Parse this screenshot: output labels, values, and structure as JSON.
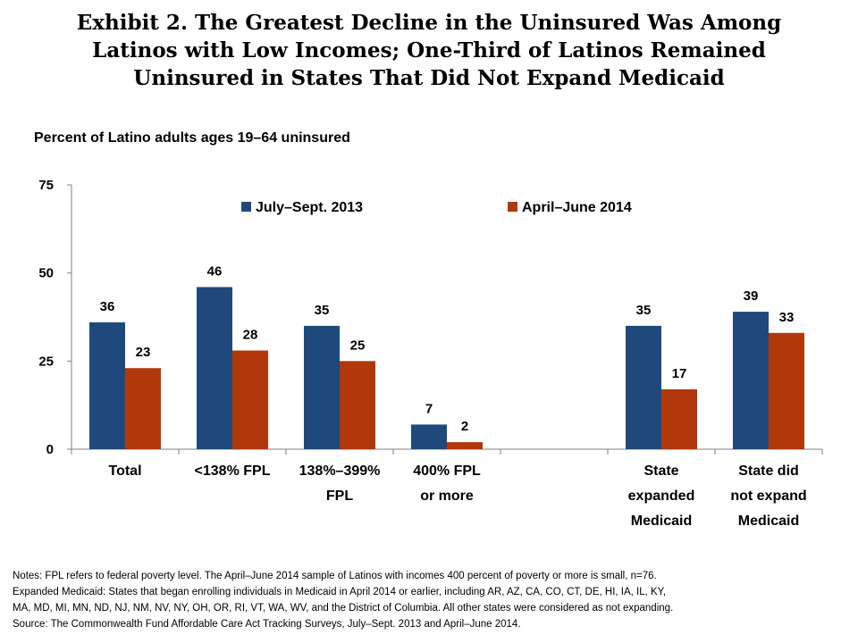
{
  "title_lines": [
    "Exhibit 2. The Greatest Decline in the Uninsured Was Among",
    "Latinos with Low Incomes; One-Third of Latinos Remained",
    "Uninsured in States That Did Not Expand Medicaid"
  ],
  "subtitle": "Percent of Latino adults ages 19–64 uninsured",
  "notes": {
    "lines": [
      "Notes: FPL refers to federal poverty level. The April–June 2014 sample of Latinos with incomes 400 percent of poverty or more is small, n=76.",
      "Expanded Medicaid: States that began enrolling individuals in Medicaid in April 2014 or earlier, including AR, AZ, CA, CO, CT, DE, HI, IA, IL, KY,",
      "MA, MD, MI, MN, ND, NJ, NM, NV, NY, OH, OR, RI, VT, WA, WV, and the District of Columbia. All other states were considered as not expanding.",
      "Source: The Commonwealth Fund Affordable Care Act Tracking Surveys, July–Sept. 2013 and April–June 2014."
    ]
  },
  "chart_data": {
    "type": "bar",
    "title": "",
    "xlabel": "",
    "ylabel": "Percent of Latino adults ages 19–64 uninsured",
    "ylim": [
      0,
      75
    ],
    "yticks": [
      0,
      25,
      50,
      75
    ],
    "grid": false,
    "legend_position": "top",
    "categories": [
      [
        "Total"
      ],
      [
        "<138% FPL"
      ],
      [
        "138%–399%",
        "FPL"
      ],
      [
        "400% FPL",
        "or more"
      ],
      [],
      [
        "State",
        "expanded",
        "Medicaid"
      ],
      [
        "State did",
        "not expand",
        "Medicaid"
      ]
    ],
    "series": [
      {
        "name": "July–Sept. 2013",
        "color": "#1f497d",
        "values": [
          36,
          46,
          35,
          7,
          null,
          35,
          39
        ]
      },
      {
        "name": "April–June 2014",
        "color": "#b0380a",
        "values": [
          23,
          28,
          25,
          2,
          null,
          17,
          33
        ]
      }
    ]
  }
}
